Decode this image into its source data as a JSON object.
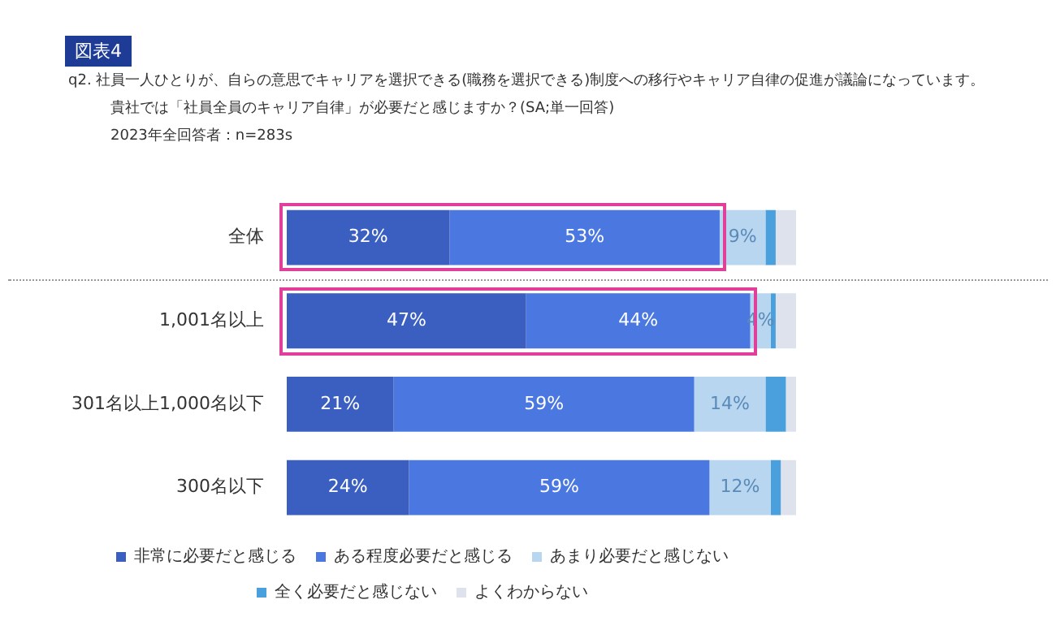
{
  "chart_data": {
    "type": "bar",
    "orientation": "horizontal",
    "stacked": true,
    "title": "図表4",
    "subtitle": "q2. 社員一人ひとりが、自らの意思でキャリアを選択できる(職務を選択できる)制度への移行やキャリア自律の促進が議論になっています。",
    "annotations": [
      "貴社では「社員全員のキャリア自律」が必要だと感じますか？(SA;単一回答)",
      "2023年全回答者：n=283s"
    ],
    "categories": [
      "全体",
      "1,001名以上",
      "301名以上1,000名以下",
      "300名以下"
    ],
    "xlim": [
      0,
      100
    ],
    "grid": false,
    "legend": "bottom",
    "tick_labels": "y",
    "series": [
      {
        "name": "非常に必要だと感じる",
        "color": "#3a5fc0",
        "values": [
          32,
          47,
          21,
          24
        ],
        "value_labels": [
          "32%",
          "47%",
          "21%",
          "24%"
        ]
      },
      {
        "name": "ある程度必要だと感じる",
        "color": "#4a78e0",
        "values": [
          53,
          44,
          59,
          59
        ],
        "value_labels": [
          "53%",
          "44%",
          "59%",
          "59%"
        ]
      },
      {
        "name": "あまり必要だと感じない",
        "color": "#b8d6f0",
        "values": [
          9,
          4,
          14,
          12
        ],
        "value_labels": [
          "9%",
          "4%",
          "14%",
          "12%"
        ]
      },
      {
        "name": "全く必要だと感じない",
        "color": "#4aa0dc",
        "values": [
          2,
          1,
          4,
          2
        ],
        "value_labels": [
          null,
          null,
          null,
          null
        ]
      },
      {
        "name": "よくわからない",
        "color": "#dde2ec",
        "values": [
          4,
          4,
          2,
          3
        ],
        "value_labels": [
          null,
          null,
          null,
          null
        ]
      }
    ]
  }
}
